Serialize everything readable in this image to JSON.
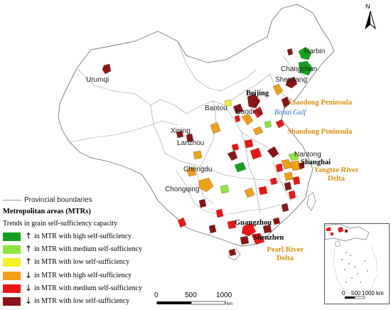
{
  "north_arrow": {
    "label": "N"
  },
  "cities": {
    "harbin": "Harbin",
    "changchun": "Changchun",
    "shenyang": "Shenyang",
    "urumqi": "Urumqi",
    "beijing": "Beijing",
    "baoding": "Baoding",
    "baotou": "Baotou",
    "xining": "Xining",
    "lanzhou": "Lanzhou",
    "nantong": "Nantong",
    "shanghai": "Shanghai",
    "chengdu": "Chengdu",
    "chongqing": "Chongqing",
    "guangzhou": "Guangzhou",
    "shenzhen": "Shenzhen"
  },
  "regions": {
    "liaodong": "Liaodong Peninsula",
    "bohai": "Bohai Gulf",
    "shandong": "Shandong Peninsula",
    "yangtze_line1": "Yangtze River",
    "yangtze_line2": "Delta",
    "pearl_line1": "Pearl River",
    "pearl_line2": "Delta"
  },
  "legend": {
    "boundary_label": "Provincial boundaries",
    "title": "Metropolitan areas (MTRs)",
    "subtitle": "Trends in grain self-sufficiency capacity",
    "items": [
      {
        "arrow": "↑",
        "label": "in MTR with high self-sufficiency",
        "color": "#14a01e"
      },
      {
        "arrow": "↑",
        "label": "in MTR with medium self-sufficiency",
        "color": "#8ce63c"
      },
      {
        "arrow": "↑",
        "label": "in MTR with low self-sufficiency",
        "color": "#f5f028"
      },
      {
        "arrow": "↓",
        "label": "in MTR with high self-sufficiency",
        "color": "#f0a014"
      },
      {
        "arrow": "↓",
        "label": "in MTR with medium self-sufficiency",
        "color": "#f01414"
      },
      {
        "arrow": "↓",
        "label": "in MTR with low self-sufficiency",
        "color": "#8c1414"
      }
    ]
  },
  "scale_main": {
    "ticks": [
      "0",
      "500",
      "1000"
    ],
    "unit": "km"
  },
  "scale_inset": {
    "ticks": [
      "0",
      "500",
      "1000"
    ],
    "unit": "km"
  }
}
